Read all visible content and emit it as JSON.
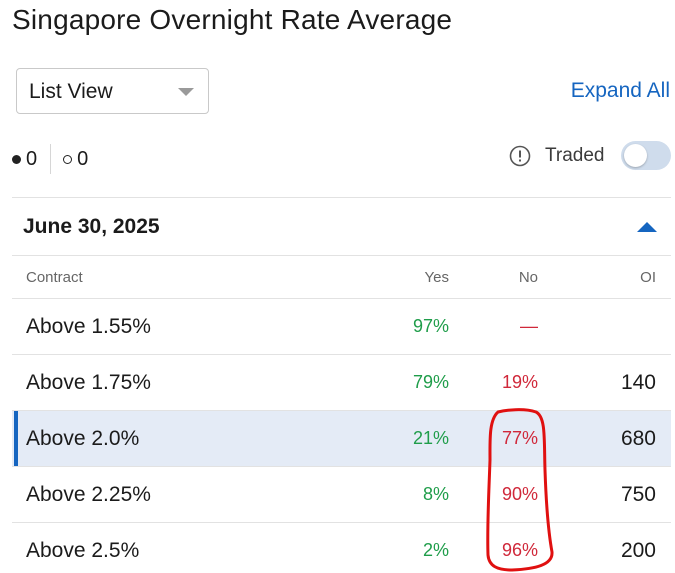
{
  "page_title": "Singapore Overnight Rate Average",
  "view_select": {
    "selected": "List View"
  },
  "expand_all_label": "Expand All",
  "position_counts": {
    "filled": "0",
    "empty": "0"
  },
  "traded_toggle": {
    "label": "Traded",
    "on": false
  },
  "group": {
    "date": "June 30, 2025",
    "expanded": true,
    "columns": {
      "contract": "Contract",
      "yes": "Yes",
      "no": "No",
      "oi": "OI"
    },
    "rows": [
      {
        "contract": "Above 1.55%",
        "yes": "97%",
        "no": "—",
        "oi": "",
        "selected": false
      },
      {
        "contract": "Above 1.75%",
        "yes": "79%",
        "no": "19%",
        "oi": "140",
        "selected": false
      },
      {
        "contract": "Above 2.0%",
        "yes": "21%",
        "no": "77%",
        "oi": "680",
        "selected": true
      },
      {
        "contract": "Above 2.25%",
        "yes": "8%",
        "no": "90%",
        "oi": "750",
        "selected": false
      },
      {
        "contract": "Above 2.5%",
        "yes": "2%",
        "no": "96%",
        "oi": "200",
        "selected": false
      }
    ]
  },
  "colors": {
    "accent": "#1565c0",
    "yes": "#1f9d4a",
    "no": "#d0283a",
    "selected_row": "#e4ebf6",
    "annotation": "#e01010"
  }
}
